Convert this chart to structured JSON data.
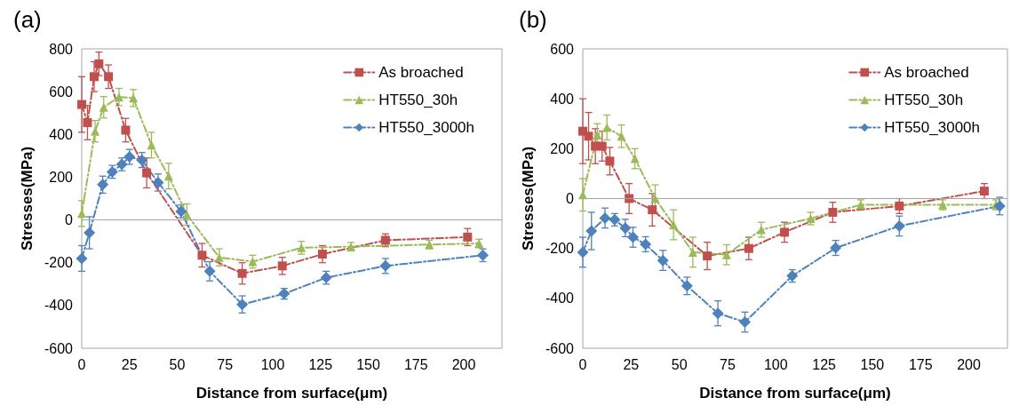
{
  "chart_data": [
    {
      "type": "line",
      "title": "(a)",
      "xlabel": "Distance from surface(μm)",
      "ylabel": "Stresses(MPa)",
      "xlim": [
        0,
        220
      ],
      "xticks": [
        0,
        25,
        50,
        75,
        100,
        125,
        150,
        175,
        200
      ],
      "ylim": [
        -600,
        800
      ],
      "yticks": [
        -600,
        -400,
        -200,
        0,
        200,
        400,
        600,
        800
      ],
      "grid": false,
      "legend": "top right",
      "line_style": "dashed",
      "ref_lines": [
        {
          "axis": "y",
          "value": 0,
          "color": "#a6a6a6"
        }
      ],
      "series": [
        {
          "name": "As broached",
          "color": "#c0504d",
          "marker": "square",
          "x": [
            0,
            3,
            6.5,
            9,
            14,
            23,
            34,
            63,
            84,
            105,
            126,
            159,
            202
          ],
          "values": [
            540,
            455,
            670,
            730,
            670,
            420,
            220,
            -165,
            -250,
            -215,
            -160,
            -95,
            -80
          ],
          "errors": [
            130,
            80,
            70,
            55,
            55,
            55,
            70,
            55,
            50,
            40,
            40,
            30,
            40
          ]
        },
        {
          "name": "HT550_30h",
          "color": "#9bbb59",
          "marker": "triangle",
          "x": [
            0,
            7,
            11.5,
            19.5,
            27,
            36.5,
            45.5,
            55,
            72,
            89.5,
            115,
            141,
            182,
            208
          ],
          "values": [
            30,
            415,
            527,
            575,
            570,
            350,
            205,
            25,
            -175,
            -195,
            -130,
            -125,
            -115,
            -110
          ],
          "errors": [
            60,
            50,
            50,
            40,
            40,
            60,
            60,
            50,
            40,
            30,
            30,
            20,
            20,
            20
          ]
        },
        {
          "name": "HT550_3000h",
          "color": "#4f81bd",
          "marker": "diamond",
          "x": [
            0,
            4,
            11,
            16,
            21,
            25,
            31.5,
            40,
            52,
            67,
            84,
            106,
            128,
            159,
            210
          ],
          "values": [
            -180,
            -60,
            165,
            225,
            260,
            295,
            280,
            175,
            40,
            -240,
            -395,
            -345,
            -270,
            -215,
            -165
          ],
          "errors": [
            60,
            75,
            40,
            30,
            30,
            35,
            35,
            40,
            30,
            45,
            40,
            25,
            30,
            35,
            30
          ]
        }
      ]
    },
    {
      "type": "line",
      "title": "(b)",
      "xlabel": "Distance from surface(μm)",
      "ylabel": "Stresses(MPa)",
      "xlim": [
        0,
        220
      ],
      "xticks": [
        0,
        25,
        50,
        75,
        100,
        125,
        150,
        175,
        200
      ],
      "ylim": [
        -600,
        600
      ],
      "yticks": [
        -600,
        -400,
        -200,
        0,
        200,
        400,
        600
      ],
      "grid": false,
      "legend": "top right",
      "line_style": "dashed",
      "ref_lines": [
        {
          "axis": "y",
          "value": 0,
          "color": "#a6a6a6"
        }
      ],
      "series": [
        {
          "name": "As broached",
          "color": "#c0504d",
          "marker": "square",
          "x": [
            0,
            3,
            6.5,
            10,
            14,
            24,
            36,
            64.5,
            86,
            104.5,
            129.5,
            164,
            208
          ],
          "values": [
            270,
            250,
            210,
            210,
            150,
            0,
            -45,
            -230,
            -200,
            -135,
            -55,
            -30,
            30
          ],
          "errors": [
            130,
            95,
            70,
            60,
            55,
            60,
            65,
            55,
            45,
            40,
            40,
            30,
            30
          ]
        },
        {
          "name": "HT550_30h",
          "color": "#9bbb59",
          "marker": "triangle",
          "x": [
            0,
            7.5,
            12.5,
            20,
            27,
            37.5,
            47,
            57,
            74.5,
            92.5,
            118,
            144,
            186.5,
            214
          ],
          "values": [
            15,
            255,
            285,
            250,
            160,
            0,
            -105,
            -215,
            -225,
            -125,
            -80,
            -25,
            -25,
            -25
          ],
          "errors": [
            65,
            45,
            50,
            45,
            40,
            55,
            60,
            60,
            40,
            30,
            25,
            20,
            20,
            20
          ]
        },
        {
          "name": "HT550_3000h",
          "color": "#4f81bd",
          "marker": "diamond",
          "x": [
            0,
            4.5,
            11.5,
            16.5,
            22,
            26,
            32.5,
            41.5,
            54,
            70,
            84,
            108.5,
            131,
            164,
            216
          ],
          "values": [
            -215,
            -130,
            -78,
            -85,
            -118,
            -155,
            -183,
            -248,
            -350,
            -460,
            -495,
            -310,
            -198,
            -110,
            -30
          ],
          "errors": [
            60,
            75,
            40,
            25,
            35,
            40,
            30,
            40,
            35,
            50,
            40,
            25,
            30,
            40,
            35
          ]
        }
      ]
    }
  ]
}
